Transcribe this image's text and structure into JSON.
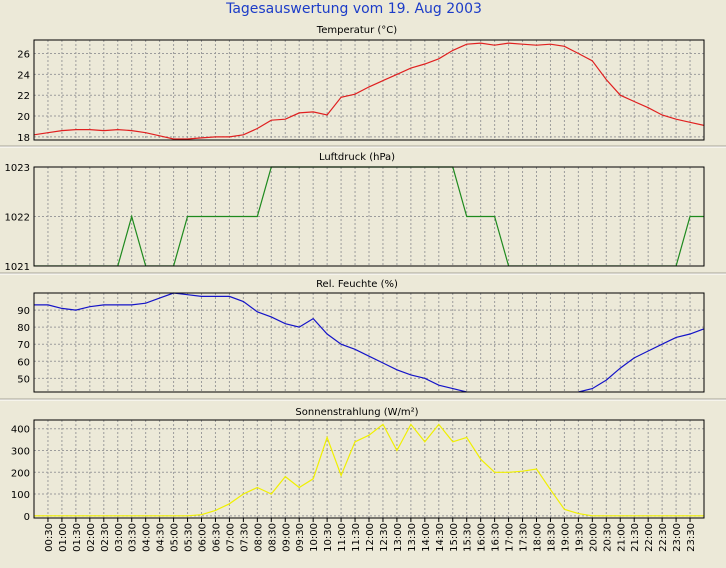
{
  "title": "Tagesauswertung vom 19. Aug 2003",
  "colors": {
    "background": "#ece9d8",
    "plot_background": "#ece9d8",
    "grid": "#9c9c9c",
    "title": "#1c3cc8",
    "temperature": "#e02020",
    "pressure": "#1e8a1e",
    "humidity": "#1414c8",
    "solar": "#f0f000"
  },
  "x_ticks": [
    "00:30",
    "01:00",
    "01:30",
    "02:00",
    "02:30",
    "03:00",
    "03:30",
    "04:00",
    "04:30",
    "05:00",
    "05:30",
    "06:00",
    "06:30",
    "07:00",
    "07:30",
    "08:00",
    "08:30",
    "09:00",
    "09:30",
    "10:00",
    "10:30",
    "11:00",
    "11:30",
    "12:00",
    "12:30",
    "13:00",
    "13:30",
    "14:00",
    "14:30",
    "15:00",
    "15:30",
    "16:00",
    "16:30",
    "17:00",
    "17:30",
    "18:00",
    "18:30",
    "19:00",
    "19:30",
    "20:00",
    "20:30",
    "21:00",
    "21:30",
    "22:00",
    "22:30",
    "23:00",
    "23:30"
  ],
  "chart_data": [
    {
      "type": "line",
      "title": "Temperatur (°C)",
      "ylim": [
        17.7,
        27.3
      ],
      "yticks": [
        18,
        20,
        22,
        24,
        26
      ],
      "grid": true,
      "color": "#e02020",
      "values": [
        18.2,
        18.4,
        18.6,
        18.7,
        18.7,
        18.6,
        18.7,
        18.6,
        18.4,
        18.1,
        17.8,
        17.8,
        17.9,
        18.0,
        18.0,
        18.2,
        18.8,
        19.6,
        19.7,
        20.3,
        20.4,
        20.1,
        21.8,
        22.1,
        22.8,
        23.4,
        24.0,
        24.6,
        25.0,
        25.5,
        26.3,
        26.9,
        27.0,
        26.8,
        27.0,
        26.9,
        26.8,
        26.9,
        26.7,
        26.0,
        25.3,
        23.5,
        22.0,
        21.4,
        20.8,
        20.1,
        19.7,
        19.4,
        19.1
      ]
    },
    {
      "type": "line",
      "title": "Luftdruck (hPa)",
      "ylim": [
        1021,
        1023
      ],
      "yticks": [
        1021,
        1022,
        1023
      ],
      "grid": true,
      "color": "#1e8a1e",
      "values": [
        1021,
        1021,
        1021,
        1021,
        1021,
        1021,
        1021,
        1022,
        1021,
        1021,
        1021,
        1022,
        1022,
        1022,
        1022,
        1022,
        1022,
        1023,
        1023,
        1023,
        1023,
        1023,
        1023,
        1023,
        1023,
        1023,
        1023,
        1023,
        1023,
        1023,
        1023,
        1022,
        1022,
        1022,
        1021,
        1021,
        1021,
        1021,
        1021,
        1021,
        1021,
        1021,
        1021,
        1021,
        1021,
        1021,
        1021,
        1022,
        1022
      ]
    },
    {
      "type": "line",
      "title": "Rel. Feuchte (%)",
      "ylim": [
        42,
        100
      ],
      "yticks": [
        50,
        60,
        70,
        80,
        90
      ],
      "grid": true,
      "color": "#1414c8",
      "values": [
        93,
        93,
        91,
        90,
        92,
        93,
        93,
        93,
        94,
        97,
        100,
        99,
        98,
        98,
        98,
        95,
        89,
        86,
        82,
        80,
        85,
        76,
        70,
        67,
        63,
        59,
        55,
        52,
        50,
        46,
        44,
        42,
        41,
        41,
        41,
        41,
        41,
        41,
        41,
        42,
        44,
        49,
        56,
        62,
        66,
        70,
        74,
        76,
        79
      ]
    },
    {
      "type": "line",
      "title": "Sonnenstrahlung (W/m²)",
      "ylim": [
        -10,
        440
      ],
      "yticks": [
        0,
        100,
        200,
        300,
        400
      ],
      "grid": true,
      "color": "#f0f000",
      "values": [
        0,
        0,
        0,
        0,
        0,
        0,
        0,
        0,
        0,
        0,
        0,
        0,
        5,
        25,
        55,
        100,
        130,
        100,
        180,
        130,
        170,
        360,
        185,
        340,
        370,
        420,
        300,
        420,
        340,
        420,
        340,
        360,
        260,
        200,
        200,
        205,
        215,
        120,
        30,
        10,
        0,
        0,
        0,
        0,
        0,
        0,
        0,
        0,
        0
      ]
    }
  ]
}
